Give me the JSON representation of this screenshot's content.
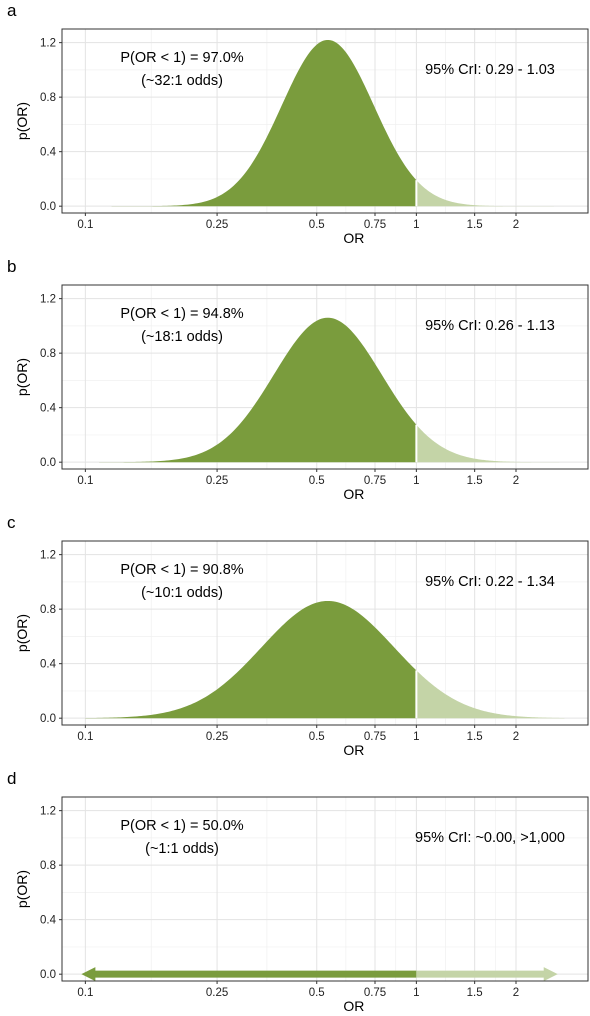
{
  "chart_data": [
    {
      "panel_label": "a",
      "type": "area",
      "xlabel": "OR",
      "ylabel": "p(OR)",
      "x_scale": "log",
      "x_ticks": [
        0.1,
        0.25,
        0.5,
        0.75,
        1,
        1.5,
        2
      ],
      "x_tick_labels": [
        "0.1",
        "0.25",
        "0.5",
        "0.75",
        "1",
        "1.5",
        "2"
      ],
      "xlim": [
        0.085,
        3.3
      ],
      "y_ticks": [
        0.0,
        0.4,
        0.8,
        1.2
      ],
      "y_tick_labels": [
        "0.0",
        "0.4",
        "0.8",
        "1.2"
      ],
      "ylim": [
        -0.05,
        1.3
      ],
      "grid": true,
      "density": {
        "mode_or": 0.54,
        "peak": 1.22,
        "log_sd": 0.32,
        "x_min": 0.12,
        "x_max": 2.6
      },
      "shade_split_or": 1.0,
      "fill_colors": {
        "below": "#7a9c3d",
        "above": "#c4d4a7"
      },
      "annotations": {
        "prob": "P(OR < 1) = 97.0%",
        "odds": "(~32:1 odds)",
        "cri": "95% CrI: 0.29 - 1.03"
      }
    },
    {
      "panel_label": "b",
      "type": "area",
      "xlabel": "OR",
      "ylabel": "p(OR)",
      "x_scale": "log",
      "x_ticks": [
        0.1,
        0.25,
        0.5,
        0.75,
        1,
        1.5,
        2
      ],
      "x_tick_labels": [
        "0.1",
        "0.25",
        "0.5",
        "0.75",
        "1",
        "1.5",
        "2"
      ],
      "xlim": [
        0.085,
        3.3
      ],
      "y_ticks": [
        0.0,
        0.4,
        0.8,
        1.2
      ],
      "y_tick_labels": [
        "0.0",
        "0.4",
        "0.8",
        "1.2"
      ],
      "ylim": [
        -0.05,
        1.3
      ],
      "grid": true,
      "density": {
        "mode_or": 0.54,
        "peak": 1.06,
        "log_sd": 0.375,
        "x_min": 0.11,
        "x_max": 2.7
      },
      "shade_split_or": 1.0,
      "fill_colors": {
        "below": "#7a9c3d",
        "above": "#c4d4a7"
      },
      "annotations": {
        "prob": "P(OR < 1) = 94.8%",
        "odds": "(~18:1 odds)",
        "cri": "95% CrI: 0.26 - 1.13"
      }
    },
    {
      "panel_label": "c",
      "type": "area",
      "xlabel": "OR",
      "ylabel": "p(OR)",
      "x_scale": "log",
      "x_ticks": [
        0.1,
        0.25,
        0.5,
        0.75,
        1,
        1.5,
        2
      ],
      "x_tick_labels": [
        "0.1",
        "0.25",
        "0.5",
        "0.75",
        "1",
        "1.5",
        "2"
      ],
      "xlim": [
        0.085,
        3.3
      ],
      "y_ticks": [
        0.0,
        0.4,
        0.8,
        1.2
      ],
      "y_tick_labels": [
        "0.0",
        "0.4",
        "0.8",
        "1.2"
      ],
      "ylim": [
        -0.05,
        1.3
      ],
      "grid": true,
      "density": {
        "mode_or": 0.54,
        "peak": 0.86,
        "log_sd": 0.46,
        "x_min": 0.1,
        "x_max": 2.8
      },
      "shade_split_or": 1.0,
      "fill_colors": {
        "below": "#7a9c3d",
        "above": "#c4d4a7"
      },
      "annotations": {
        "prob": "P(OR < 1) = 90.8%",
        "odds": "(~10:1 odds)",
        "cri": "95% CrI: 0.22 - 1.34"
      }
    },
    {
      "panel_label": "d",
      "type": "line",
      "xlabel": "OR",
      "ylabel": "p(OR)",
      "x_scale": "log",
      "x_ticks": [
        0.1,
        0.25,
        0.5,
        0.75,
        1,
        1.5,
        2
      ],
      "x_tick_labels": [
        "0.1",
        "0.25",
        "0.5",
        "0.75",
        "1",
        "1.5",
        "2"
      ],
      "xlim": [
        0.085,
        3.3
      ],
      "y_ticks": [
        0.0,
        0.4,
        0.8,
        1.2
      ],
      "y_tick_labels": [
        "0.0",
        "0.4",
        "0.8",
        "1.2"
      ],
      "ylim": [
        -0.05,
        1.3
      ],
      "grid": true,
      "flat_line": {
        "y": 0.0,
        "x_min": 0.1,
        "x_max": 2.6,
        "arrows": "both"
      },
      "shade_split_or": 1.0,
      "fill_colors": {
        "below": "#7a9c3d",
        "above": "#c4d4a7"
      },
      "annotations": {
        "prob": "P(OR < 1) = 50.0%",
        "odds": "(~1:1 odds)",
        "cri": "95% CrI: ~0.00, >1,000"
      }
    }
  ]
}
